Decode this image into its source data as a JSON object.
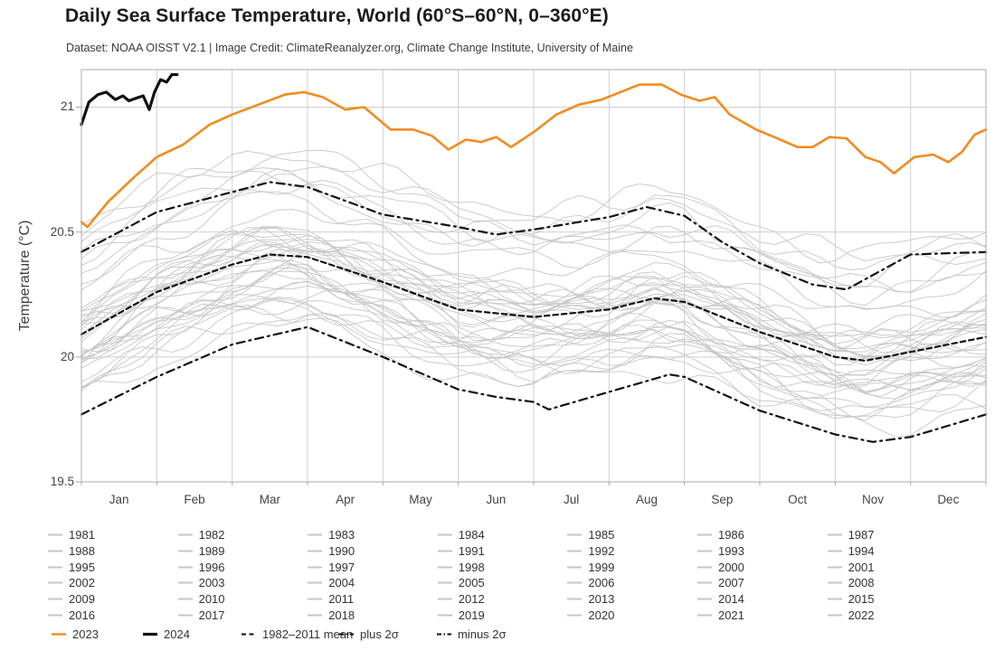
{
  "header": {
    "title": "Daily Sea Surface Temperature, World (60°S–60°N, 0–360°E)",
    "subtitle": "Dataset: NOAA OISST V2.1 | Image Credit: ClimateReanalyzer.org, Climate Change Institute, University of Maine"
  },
  "colors": {
    "accent_2023": "#F28C1E",
    "line_2024": "#111111",
    "year_gray": "#c6c6c6",
    "grid": "#cfcfcf",
    "border": "#ababab",
    "text": "#333333"
  },
  "axis": {
    "y_ticks": [
      "21",
      "20.5",
      "20",
      "19.5"
    ],
    "y_tick_values": [
      21,
      20.5,
      20,
      19.5
    ],
    "months": [
      "Jan",
      "Feb",
      "Mar",
      "Apr",
      "May",
      "Jun",
      "Jul",
      "Aug",
      "Sep",
      "Oct",
      "Nov",
      "Dec"
    ]
  },
  "legend": {
    "years": [
      "1981",
      "1982",
      "1983",
      "1984",
      "1985",
      "1986",
      "1987",
      "1988",
      "1989",
      "1990",
      "1991",
      "1992",
      "1993",
      "1994",
      "1995",
      "1996",
      "1997",
      "1998",
      "1999",
      "2000",
      "2001",
      "2002",
      "2003",
      "2004",
      "2005",
      "2006",
      "2007",
      "2008",
      "2009",
      "2010",
      "2011",
      "2012",
      "2013",
      "2014",
      "2015",
      "2016",
      "2017",
      "2018",
      "2019",
      "2020",
      "2021",
      "2022"
    ],
    "special": [
      {
        "label": "2023",
        "style": "solid",
        "color": "#F28C1E",
        "width": 2.4
      },
      {
        "label": "2024",
        "style": "solid",
        "color": "#111111",
        "width": 3.2
      },
      {
        "label": "1982–2011 mean",
        "style": "dashed",
        "color": "#111111",
        "width": 2
      },
      {
        "label": "plus 2σ",
        "style": "dashdot",
        "color": "#111111",
        "width": 2
      },
      {
        "label": "minus 2σ",
        "style": "dashdot",
        "color": "#111111",
        "width": 2
      }
    ]
  },
  "chart_data": {
    "type": "line",
    "title": "Daily Sea Surface Temperature, World (60°S–60°N, 0–360°E)",
    "xlabel": "",
    "ylabel": "Temperature (°C)",
    "ylim": [
      19.5,
      21.15
    ],
    "x_unit": "months, 0 = Jan 1 through 12 = Dec 31",
    "grid": true,
    "legend_position": "bottom",
    "series": [
      {
        "name": "1982–2011 mean",
        "style": "dashed",
        "color": "#111111",
        "width": 2.2,
        "x": [
          0,
          1,
          2,
          2.5,
          3,
          4,
          5,
          6,
          7,
          7.6,
          8,
          9,
          10,
          10.4,
          11,
          12
        ],
        "values": [
          20.09,
          20.26,
          20.37,
          20.41,
          20.4,
          20.3,
          20.19,
          20.16,
          20.19,
          20.235,
          20.22,
          20.1,
          20.0,
          19.985,
          20.02,
          20.08
        ]
      },
      {
        "name": "plus 2σ",
        "style": "dashdot",
        "color": "#111111",
        "width": 2.2,
        "x": [
          0,
          1,
          2,
          2.5,
          3,
          4,
          5,
          5.5,
          6,
          7,
          7.5,
          8,
          8.5,
          9,
          9.7,
          10.15,
          11,
          12
        ],
        "values": [
          20.42,
          20.58,
          20.66,
          20.7,
          20.68,
          20.57,
          20.52,
          20.49,
          20.51,
          20.56,
          20.6,
          20.565,
          20.46,
          20.375,
          20.29,
          20.27,
          20.41,
          20.42
        ]
      },
      {
        "name": "minus 2σ",
        "style": "dashdot",
        "color": "#111111",
        "width": 2.2,
        "x": [
          0,
          1,
          2,
          3,
          4,
          5,
          5.5,
          6,
          6.2,
          7,
          7.8,
          8,
          9,
          10,
          10.5,
          11,
          12
        ],
        "values": [
          19.77,
          19.92,
          20.05,
          20.12,
          20.0,
          19.87,
          19.84,
          19.82,
          19.79,
          19.86,
          19.93,
          19.92,
          19.785,
          19.69,
          19.66,
          19.68,
          19.77
        ]
      },
      {
        "name": "2023",
        "style": "solid",
        "color": "#F28C1E",
        "width": 2.6,
        "x": [
          0,
          0.08,
          0.35,
          0.7,
          1.0,
          1.35,
          1.7,
          2.0,
          2.35,
          2.7,
          2.95,
          3.2,
          3.5,
          3.75,
          4.1,
          4.4,
          4.65,
          4.87,
          5.1,
          5.3,
          5.5,
          5.7,
          6.0,
          6.3,
          6.6,
          6.9,
          7.15,
          7.4,
          7.7,
          7.95,
          8.2,
          8.4,
          8.6,
          8.95,
          9.15,
          9.5,
          9.7,
          9.92,
          10.15,
          10.4,
          10.6,
          10.78,
          11.05,
          11.3,
          11.5,
          11.68,
          11.85,
          12
        ],
        "values": [
          20.54,
          20.52,
          20.62,
          20.72,
          20.8,
          20.85,
          20.93,
          20.97,
          21.01,
          21.05,
          21.06,
          21.04,
          20.99,
          21.0,
          20.91,
          20.91,
          20.885,
          20.83,
          20.87,
          20.86,
          20.88,
          20.84,
          20.9,
          20.97,
          21.01,
          21.03,
          21.06,
          21.09,
          21.09,
          21.05,
          21.025,
          21.04,
          20.97,
          20.91,
          20.885,
          20.84,
          20.84,
          20.88,
          20.875,
          20.8,
          20.78,
          20.735,
          20.8,
          20.81,
          20.78,
          20.82,
          20.89,
          20.91
        ]
      },
      {
        "name": "2024",
        "style": "solid",
        "color": "#111111",
        "width": 3.2,
        "x": [
          0,
          0.1,
          0.22,
          0.33,
          0.45,
          0.55,
          0.63,
          0.72,
          0.82,
          0.9,
          0.97,
          1.05,
          1.13,
          1.2,
          1.27
        ],
        "values": [
          20.93,
          21.02,
          21.05,
          21.06,
          21.03,
          21.045,
          21.025,
          21.035,
          21.045,
          20.99,
          21.06,
          21.11,
          21.1,
          21.13,
          21.13
        ]
      }
    ],
    "background_years": {
      "color": "#c6c6c6",
      "note": "42 gray lines, one per year 1981–2022; offset = approximate mean anomaly (°C) vs the 1982–2011 mean curve, estimated from the plotted band",
      "years": [
        {
          "year": 1981,
          "offset": -0.17
        },
        {
          "year": 1982,
          "offset": -0.2
        },
        {
          "year": 1983,
          "offset": -0.05
        },
        {
          "year": 1984,
          "offset": -0.23
        },
        {
          "year": 1985,
          "offset": -0.27
        },
        {
          "year": 1986,
          "offset": -0.18
        },
        {
          "year": 1987,
          "offset": -0.06
        },
        {
          "year": 1988,
          "offset": -0.1
        },
        {
          "year": 1989,
          "offset": -0.22
        },
        {
          "year": 1990,
          "offset": -0.1
        },
        {
          "year": 1991,
          "offset": -0.1
        },
        {
          "year": 1992,
          "offset": -0.18
        },
        {
          "year": 1993,
          "offset": -0.14
        },
        {
          "year": 1994,
          "offset": -0.1
        },
        {
          "year": 1995,
          "offset": -0.03
        },
        {
          "year": 1996,
          "offset": -0.12
        },
        {
          "year": 1997,
          "offset": 0.02
        },
        {
          "year": 1998,
          "offset": 0.08
        },
        {
          "year": 1999,
          "offset": -0.12
        },
        {
          "year": 2000,
          "offset": -0.09
        },
        {
          "year": 2001,
          "offset": 0.0
        },
        {
          "year": 2002,
          "offset": 0.05
        },
        {
          "year": 2003,
          "offset": 0.07
        },
        {
          "year": 2004,
          "offset": 0.04
        },
        {
          "year": 2005,
          "offset": 0.07
        },
        {
          "year": 2006,
          "offset": 0.05
        },
        {
          "year": 2007,
          "offset": 0.03
        },
        {
          "year": 2008,
          "offset": -0.01
        },
        {
          "year": 2009,
          "offset": 0.07
        },
        {
          "year": 2010,
          "offset": 0.11
        },
        {
          "year": 2011,
          "offset": 0.0
        },
        {
          "year": 2012,
          "offset": 0.05
        },
        {
          "year": 2013,
          "offset": 0.09
        },
        {
          "year": 2014,
          "offset": 0.17
        },
        {
          "year": 2015,
          "offset": 0.28
        },
        {
          "year": 2016,
          "offset": 0.38
        },
        {
          "year": 2017,
          "offset": 0.28
        },
        {
          "year": 2018,
          "offset": 0.22
        },
        {
          "year": 2019,
          "offset": 0.32
        },
        {
          "year": 2020,
          "offset": 0.4
        },
        {
          "year": 2021,
          "offset": 0.3
        },
        {
          "year": 2022,
          "offset": 0.42
        }
      ]
    }
  }
}
